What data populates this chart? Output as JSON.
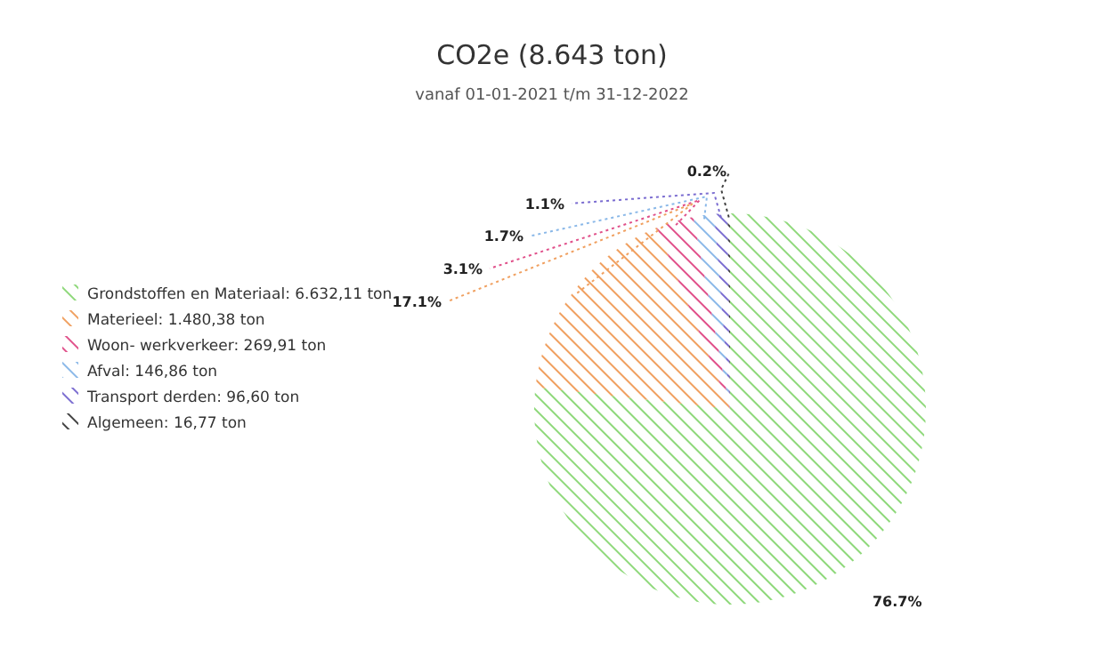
{
  "chart_data": {
    "type": "pie",
    "title": "CO2e (8.643 ton)",
    "subtitle": "vanaf 01-01-2021 t/m 31-12-2022",
    "categories": [
      "Grondstoffen en Materiaal: 6.632,11 ton",
      "Materieel: 1.480,38 ton",
      "Woon- werkverkeer: 269,91 ton",
      "Afval: 146,86 ton",
      "Transport derden: 96,60 ton",
      "Algemeen: 16,77 ton"
    ],
    "values": [
      76.7,
      17.1,
      3.1,
      1.7,
      1.1,
      0.2
    ],
    "value_labels": [
      "76.7%",
      "17.1%",
      "3.1%",
      "1.7%",
      "1.1%",
      "0.2%"
    ],
    "colors": [
      "#8ed87a",
      "#f0a060",
      "#e0508a",
      "#8ab8e8",
      "#7a6cd0",
      "#404040"
    ],
    "legend": "left"
  }
}
